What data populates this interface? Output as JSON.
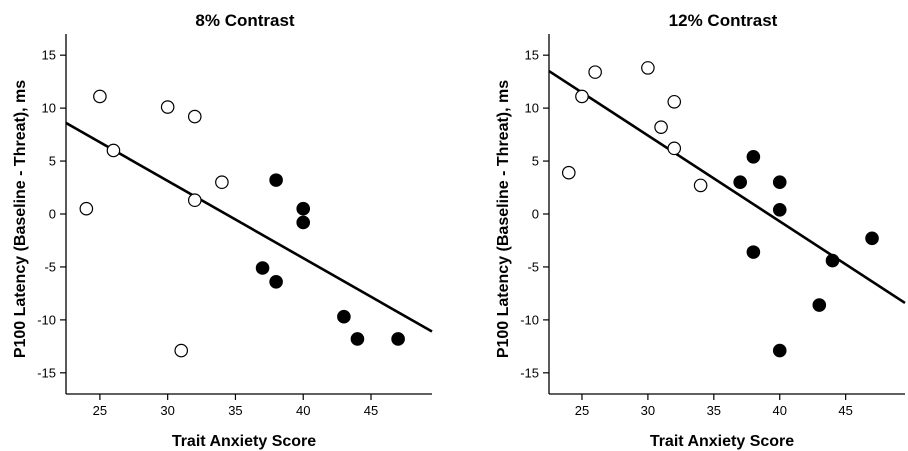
{
  "chart_data": [
    {
      "type": "scatter",
      "title": "8% Contrast",
      "xlabel": "Trait Anxiety Score",
      "ylabel": "P100 Latency (Baseline - Threat), ms",
      "xlim": [
        22.5,
        49.5
      ],
      "ylim": [
        -17,
        17
      ],
      "xticks": [
        25,
        30,
        35,
        40,
        45
      ],
      "yticks": [
        15,
        10,
        5,
        0,
        -5,
        -10,
        -15
      ],
      "grid": false,
      "series": [
        {
          "marker": "open-circle",
          "points": [
            [
              24,
              0.5
            ],
            [
              25,
              11.1
            ],
            [
              26,
              6
            ],
            [
              30,
              10.1
            ],
            [
              31,
              -12.9
            ],
            [
              32,
              9.2
            ],
            [
              32,
              1.3
            ],
            [
              34,
              3
            ]
          ]
        },
        {
          "marker": "filled-circle",
          "points": [
            [
              37,
              -5.1
            ],
            [
              38,
              3.2
            ],
            [
              38,
              -6.4
            ],
            [
              40,
              0.5
            ],
            [
              40,
              -0.8
            ],
            [
              43,
              -9.7
            ],
            [
              44,
              -11.8
            ],
            [
              47,
              -11.8
            ]
          ]
        }
      ],
      "fit_line": {
        "x": [
          22.5,
          49.5
        ],
        "y": [
          8.6,
          -11.1
        ]
      }
    },
    {
      "type": "scatter",
      "title": "12% Contrast",
      "xlabel": "Trait Anxiety Score",
      "ylabel": "P100 Latency (Baseline - Threat), ms",
      "xlim": [
        22.5,
        49.5
      ],
      "ylim": [
        -17,
        17
      ],
      "xticks": [
        25,
        30,
        35,
        40,
        45
      ],
      "yticks": [
        15,
        10,
        5,
        0,
        -5,
        -10,
        -15
      ],
      "grid": false,
      "series": [
        {
          "marker": "open-circle",
          "points": [
            [
              24,
              3.9
            ],
            [
              25,
              11.1
            ],
            [
              26,
              13.4
            ],
            [
              30,
              13.8
            ],
            [
              31,
              8.2
            ],
            [
              32,
              10.6
            ],
            [
              32,
              6.2
            ],
            [
              34,
              2.7
            ]
          ]
        },
        {
          "marker": "filled-circle",
          "points": [
            [
              37,
              3
            ],
            [
              38,
              5.4
            ],
            [
              38,
              -3.6
            ],
            [
              40,
              3
            ],
            [
              40,
              0.4
            ],
            [
              40,
              -12.9
            ],
            [
              43,
              -8.6
            ],
            [
              44,
              -4.4
            ],
            [
              47,
              -2.3
            ]
          ]
        }
      ],
      "fit_line": {
        "x": [
          22.5,
          49.5
        ],
        "y": [
          13.5,
          -8.4
        ]
      }
    }
  ]
}
